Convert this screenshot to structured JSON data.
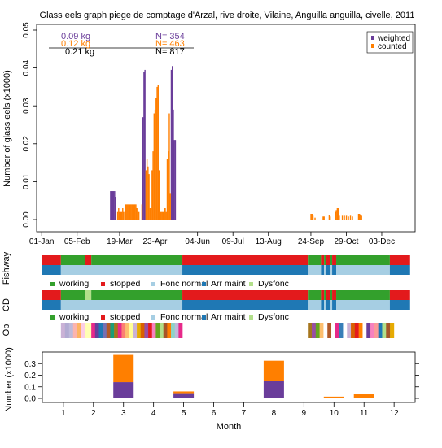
{
  "colors": {
    "weighted": "#6a3d9a",
    "counted": "#ff7f00",
    "working": "#33a02c",
    "stopped": "#e31a1c",
    "fonc_normal": "#a6cee3",
    "arr_maint": "#1f78b4",
    "dysfonc": "#b2df8a"
  },
  "chart_data": [
    {
      "type": "bar",
      "title": "Glass eels graph piege de comptage d'Arzal, rive droite, Vilaine, Anguilla anguilla, civelle, 2011",
      "ylabel": "Number of glass eels (x1000)",
      "ylim": [
        0,
        0.05
      ],
      "yticks": [
        "0.00",
        "0.01",
        "0.02",
        "0.03",
        "0.04",
        "0.05"
      ],
      "xticks": [
        "01-Jan",
        "05-Feb",
        "19-Mar",
        "23-Apr",
        "04-Jun",
        "09-Jul",
        "13-Aug",
        "24-Sep",
        "29-Oct",
        "03-Dec"
      ],
      "summary": [
        {
          "kg": "0.09  kg",
          "n": "N= 354",
          "series": "weighted"
        },
        {
          "kg": "0.12  kg",
          "n": "N= 463",
          "series": "counted"
        },
        {
          "kg": "0.21  kg",
          "n": "N= 817",
          "series": "total"
        }
      ],
      "legend": [
        "weighted",
        "counted"
      ],
      "legend_position": "top-right",
      "series": [
        {
          "name": "weighted",
          "points": [
            [
              "2011-03-10",
              0.0075
            ],
            [
              "2011-03-11",
              0.0075
            ],
            [
              "2011-03-12",
              0.0075
            ],
            [
              "2011-03-13",
              0.0075
            ],
            [
              "2011-03-14",
              0.0075
            ],
            [
              "2011-03-15",
              0.006
            ],
            [
              "2011-04-11",
              0.027
            ],
            [
              "2011-04-12",
              0.039
            ],
            [
              "2011-04-13",
              0.0395
            ],
            [
              "2011-05-09",
              0.0395
            ],
            [
              "2011-05-10",
              0.0405
            ],
            [
              "2011-05-11",
              0.029
            ],
            [
              "2011-05-12",
              0.021
            ],
            [
              "2011-05-13",
              0.021
            ]
          ]
        },
        {
          "name": "counted",
          "points": [
            [
              "2011-03-17",
              0.002
            ],
            [
              "2011-03-18",
              0.003
            ],
            [
              "2011-03-19",
              0.002
            ],
            [
              "2011-03-20",
              0.002
            ],
            [
              "2011-03-21",
              0.002
            ],
            [
              "2011-03-22",
              0.003
            ],
            [
              "2011-03-23",
              0.002
            ],
            [
              "2011-03-25",
              0.004
            ],
            [
              "2011-03-26",
              0.004
            ],
            [
              "2011-03-27",
              0.004
            ],
            [
              "2011-03-28",
              0.004
            ],
            [
              "2011-03-29",
              0.004
            ],
            [
              "2011-03-30",
              0.004
            ],
            [
              "2011-03-31",
              0.004
            ],
            [
              "2011-04-01",
              0.004
            ],
            [
              "2011-04-02",
              0.004
            ],
            [
              "2011-04-03",
              0.004
            ],
            [
              "2011-04-04",
              0.004
            ],
            [
              "2011-04-05",
              0.003
            ],
            [
              "2011-04-06",
              0.002
            ],
            [
              "2011-04-07",
              0.002
            ],
            [
              "2011-04-10",
              0.004
            ],
            [
              "2011-04-14",
              0.013
            ],
            [
              "2011-04-15",
              0.016
            ],
            [
              "2011-04-16",
              0.014
            ],
            [
              "2011-04-17",
              0.012
            ],
            [
              "2011-04-18",
              0.003
            ],
            [
              "2011-04-19",
              0.003
            ],
            [
              "2011-04-20",
              0.013
            ],
            [
              "2011-04-21",
              0.018
            ],
            [
              "2011-04-22",
              0.028
            ],
            [
              "2011-04-23",
              0.029
            ],
            [
              "2011-04-24",
              0.032
            ],
            [
              "2011-04-25",
              0.035
            ],
            [
              "2011-04-26",
              0.0355
            ],
            [
              "2011-04-27",
              0.013
            ],
            [
              "2011-04-28",
              0.002
            ],
            [
              "2011-04-29",
              0.002
            ],
            [
              "2011-04-30",
              0.002
            ],
            [
              "2011-05-01",
              0.002
            ],
            [
              "2011-05-02",
              0.003
            ],
            [
              "2011-05-03",
              0.003
            ],
            [
              "2011-05-04",
              0.002
            ],
            [
              "2011-05-05",
              0.016
            ],
            [
              "2011-05-06",
              0.018
            ],
            [
              "2011-05-07",
              0.028
            ],
            [
              "2011-05-08",
              0.007
            ],
            [
              "2011-09-24",
              0.0015
            ],
            [
              "2011-09-25",
              0.0015
            ],
            [
              "2011-09-26",
              0.001
            ],
            [
              "2011-09-28",
              0.0005
            ],
            [
              "2011-10-06",
              0.0008
            ],
            [
              "2011-10-07",
              0.0008
            ],
            [
              "2011-10-12",
              0.0012
            ],
            [
              "2011-10-13",
              0.0008
            ],
            [
              "2011-10-18",
              0.002
            ],
            [
              "2011-10-19",
              0.0025
            ],
            [
              "2011-10-20",
              0.003
            ],
            [
              "2011-10-21",
              0.003
            ],
            [
              "2011-10-22",
              0.001
            ],
            [
              "2011-10-25",
              0.001
            ],
            [
              "2011-10-27",
              0.001
            ],
            [
              "2011-10-29",
              0.001
            ],
            [
              "2011-10-31",
              0.0008
            ],
            [
              "2011-11-02",
              0.001
            ],
            [
              "2011-11-04",
              0.0008
            ],
            [
              "2011-11-10",
              0.0015
            ],
            [
              "2011-11-11",
              0.0015
            ],
            [
              "2011-11-12",
              0.0012
            ],
            [
              "2011-11-13",
              0.001
            ]
          ]
        }
      ]
    },
    {
      "type": "timeline",
      "rows": [
        {
          "label": "Fishway",
          "segments": [
            {
              "from": "2011-01-01",
              "to": "2011-01-20",
              "status": "stopped"
            },
            {
              "from": "2011-01-20",
              "to": "2011-02-13",
              "status": "working"
            },
            {
              "from": "2011-02-13",
              "to": "2011-02-19",
              "status": "stopped"
            },
            {
              "from": "2011-02-19",
              "to": "2011-05-20",
              "status": "working"
            },
            {
              "from": "2011-05-20",
              "to": "2011-09-21",
              "status": "stopped"
            },
            {
              "from": "2011-09-21",
              "to": "2011-10-04",
              "status": "working"
            },
            {
              "from": "2011-10-04",
              "to": "2011-10-07",
              "status": "stopped"
            },
            {
              "from": "2011-10-07",
              "to": "2011-10-09",
              "status": "working"
            },
            {
              "from": "2011-10-09",
              "to": "2011-10-13",
              "status": "stopped"
            },
            {
              "from": "2011-10-13",
              "to": "2011-10-15",
              "status": "working"
            },
            {
              "from": "2011-10-15",
              "to": "2011-10-19",
              "status": "stopped"
            },
            {
              "from": "2011-10-19",
              "to": "2011-12-11",
              "status": "working"
            },
            {
              "from": "2011-12-11",
              "to": "2011-12-31",
              "status": "stopped"
            }
          ],
          "lower": [
            {
              "from": "2011-01-01",
              "to": "2011-01-20",
              "status": "arr_maint"
            },
            {
              "from": "2011-01-20",
              "to": "2011-05-20",
              "status": "fonc_normal"
            },
            {
              "from": "2011-05-20",
              "to": "2011-09-21",
              "status": "arr_maint"
            },
            {
              "from": "2011-09-21",
              "to": "2011-10-04",
              "status": "fonc_normal"
            },
            {
              "from": "2011-10-04",
              "to": "2011-10-07",
              "status": "arr_maint"
            },
            {
              "from": "2011-10-07",
              "to": "2011-10-09",
              "status": "fonc_normal"
            },
            {
              "from": "2011-10-09",
              "to": "2011-10-13",
              "status": "arr_maint"
            },
            {
              "from": "2011-10-13",
              "to": "2011-10-15",
              "status": "fonc_normal"
            },
            {
              "from": "2011-10-15",
              "to": "2011-10-19",
              "status": "arr_maint"
            },
            {
              "from": "2011-10-19",
              "to": "2011-12-11",
              "status": "fonc_normal"
            },
            {
              "from": "2011-12-11",
              "to": "2011-12-31",
              "status": "arr_maint"
            }
          ]
        },
        {
          "label": "CD",
          "segments": [
            {
              "from": "2011-01-01",
              "to": "2011-01-20",
              "status": "stopped"
            },
            {
              "from": "2011-01-20",
              "to": "2011-02-13",
              "status": "working"
            },
            {
              "from": "2011-02-13",
              "to": "2011-02-19",
              "status": "dysfonc"
            },
            {
              "from": "2011-02-19",
              "to": "2011-05-20",
              "status": "working"
            },
            {
              "from": "2011-05-20",
              "to": "2011-09-21",
              "status": "stopped"
            },
            {
              "from": "2011-09-21",
              "to": "2011-10-04",
              "status": "working"
            },
            {
              "from": "2011-10-04",
              "to": "2011-10-07",
              "status": "stopped"
            },
            {
              "from": "2011-10-07",
              "to": "2011-10-09",
              "status": "working"
            },
            {
              "from": "2011-10-09",
              "to": "2011-10-13",
              "status": "stopped"
            },
            {
              "from": "2011-10-13",
              "to": "2011-10-15",
              "status": "working"
            },
            {
              "from": "2011-10-15",
              "to": "2011-10-19",
              "status": "stopped"
            },
            {
              "from": "2011-10-19",
              "to": "2011-12-11",
              "status": "working"
            },
            {
              "from": "2011-12-11",
              "to": "2011-12-31",
              "status": "stopped"
            }
          ],
          "lower": [
            {
              "from": "2011-01-01",
              "to": "2011-01-20",
              "status": "arr_maint"
            },
            {
              "from": "2011-01-20",
              "to": "2011-05-20",
              "status": "fonc_normal"
            },
            {
              "from": "2011-05-20",
              "to": "2011-09-21",
              "status": "arr_maint"
            },
            {
              "from": "2011-09-21",
              "to": "2011-10-04",
              "status": "fonc_normal"
            },
            {
              "from": "2011-10-04",
              "to": "2011-10-07",
              "status": "arr_maint"
            },
            {
              "from": "2011-10-07",
              "to": "2011-10-09",
              "status": "fonc_normal"
            },
            {
              "from": "2011-10-09",
              "to": "2011-10-13",
              "status": "arr_maint"
            },
            {
              "from": "2011-10-13",
              "to": "2011-10-15",
              "status": "fonc_normal"
            },
            {
              "from": "2011-10-15",
              "to": "2011-10-19",
              "status": "arr_maint"
            },
            {
              "from": "2011-10-19",
              "to": "2011-12-11",
              "status": "fonc_normal"
            },
            {
              "from": "2011-12-11",
              "to": "2011-12-31",
              "status": "arr_maint"
            }
          ]
        }
      ],
      "status_legend": [
        {
          "key": "working",
          "label": "working"
        },
        {
          "key": "stopped",
          "label": "stopped"
        },
        {
          "key": "fonc_normal",
          "label": "Fonc normal"
        },
        {
          "key": "arr_maint",
          "label": "Arr maint"
        },
        {
          "key": "dysfonc",
          "label": "Dysfonc"
        }
      ]
    },
    {
      "type": "timeline",
      "row_label": "Op",
      "blocks": [
        {
          "from": "2011-01-20",
          "to": "2011-02-13",
          "colors": [
            "#cab2d6",
            "#b2abd2",
            "#bebada",
            "#fbb4ae",
            "#fdb462",
            "#fccde5"
          ]
        },
        {
          "from": "2011-02-13",
          "to": "2011-02-19",
          "colors": [
            "#ffffb3"
          ]
        },
        {
          "from": "2011-02-19",
          "to": "2011-05-20",
          "colors": [
            "#e7298a",
            "#6a3d9a",
            "#1f78b4",
            "#7570b3",
            "#b15928",
            "#1b9e77",
            "#a6761d",
            "#e7298a",
            "#fb8072",
            "#fdbf6f",
            "#ffff99",
            "#cab2d6",
            "#e6ab02",
            "#d95f02",
            "#984ea3",
            "#e41a1c",
            "#f781bf",
            "#66a61e",
            "#b2df8a",
            "#a65628",
            "#ff7f00",
            "#8dd3c7",
            "#bebada",
            "#e7298a"
          ]
        },
        {
          "from": "2011-09-21",
          "to": "2011-12-15",
          "colors": [
            "#a6761d",
            "#984ea3",
            "#66a61e",
            "#fdbf6f",
            "#ffffff",
            "#b15928",
            "#ffffff",
            "#e7298a",
            "#377eb8",
            "#ffffff",
            "#cab2d6",
            "#d95f02",
            "#e41a1c",
            "#ff7f00",
            "#ffffff",
            "#6a3d9a",
            "#f781bf",
            "#fb9a99",
            "#1f78b4",
            "#b2df8a",
            "#a65628",
            "#e6ab02"
          ]
        }
      ]
    },
    {
      "type": "bar",
      "stacked": true,
      "xlabel": "Month",
      "ylabel": "Number (x1000)",
      "categories": [
        "1",
        "2",
        "3",
        "4",
        "5",
        "6",
        "7",
        "8",
        "9",
        "10",
        "11",
        "12"
      ],
      "ylim": [
        0,
        0.4
      ],
      "yticks": [
        "0.0",
        "0.1",
        "0.2",
        "0.3"
      ],
      "series": [
        {
          "name": "weighted",
          "values": [
            0,
            0,
            0.14,
            0,
            0.045,
            0,
            0,
            0.15,
            0,
            0,
            0,
            0
          ]
        },
        {
          "name": "counted",
          "values": [
            0.002,
            0,
            0.235,
            0,
            0.015,
            0,
            0,
            0.175,
            0.003,
            0.015,
            0.035,
            0.002
          ]
        }
      ]
    }
  ]
}
